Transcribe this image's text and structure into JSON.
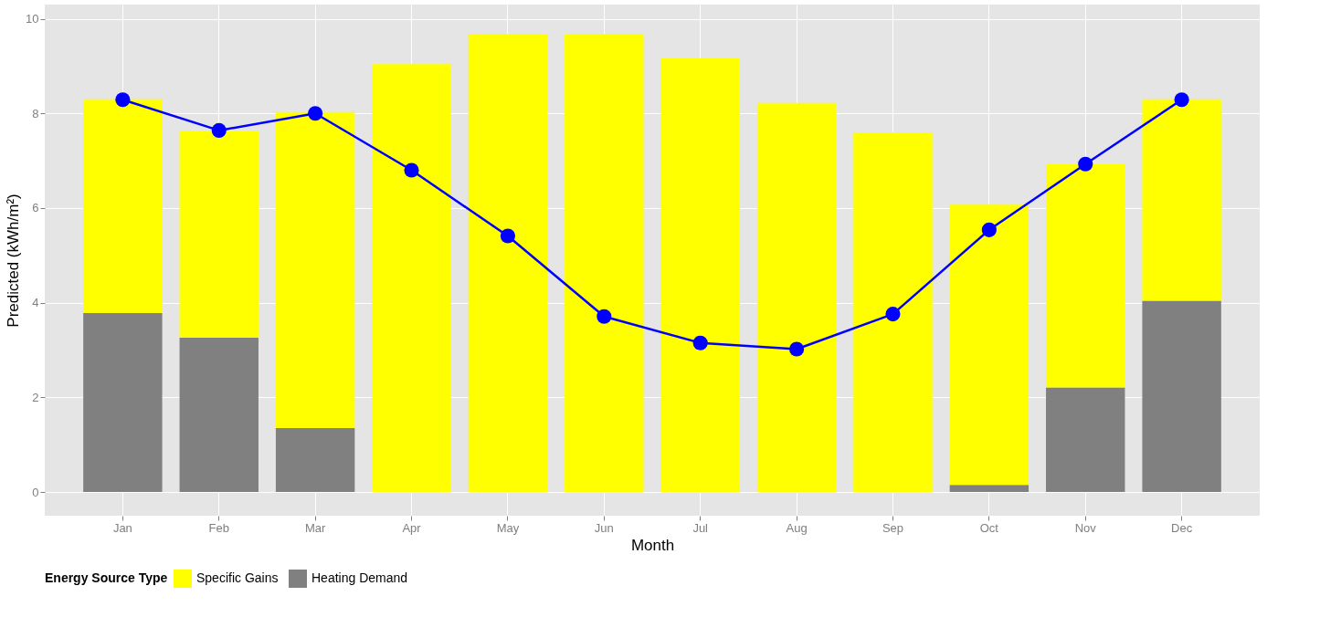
{
  "chart_data": {
    "type": "bar",
    "stacked": true,
    "xlabel": "Month",
    "ylabel": "Predicted (kWh/m²)",
    "legend_title": "Energy Source Type",
    "categories": [
      "Jan",
      "Feb",
      "Mar",
      "Apr",
      "May",
      "Jun",
      "Jul",
      "Aug",
      "Sep",
      "Oct",
      "Nov",
      "Dec"
    ],
    "series": [
      {
        "name": "Heating Demand",
        "color": "#808080",
        "values": [
          3.78,
          3.26,
          1.35,
          0,
          0,
          0,
          0,
          0,
          0,
          0.15,
          2.21,
          4.04
        ]
      },
      {
        "name": "Specific Gains",
        "color": "#ffff00",
        "values": [
          4.52,
          4.36,
          6.68,
          9.04,
          9.68,
          9.68,
          9.16,
          8.22,
          7.6,
          5.92,
          4.72,
          4.26
        ]
      },
      {
        "type": "line",
        "color": "#0000ff",
        "marker": "circle",
        "values": [
          8.29,
          7.64,
          8.0,
          6.8,
          5.41,
          3.71,
          3.15,
          3.02,
          3.76,
          5.54,
          6.93,
          8.29
        ]
      }
    ],
    "ylim": [
      -0.5,
      10.3
    ],
    "yticks": [
      0,
      2,
      4,
      6,
      8,
      10
    ],
    "grid": true,
    "legend": "bottom"
  }
}
